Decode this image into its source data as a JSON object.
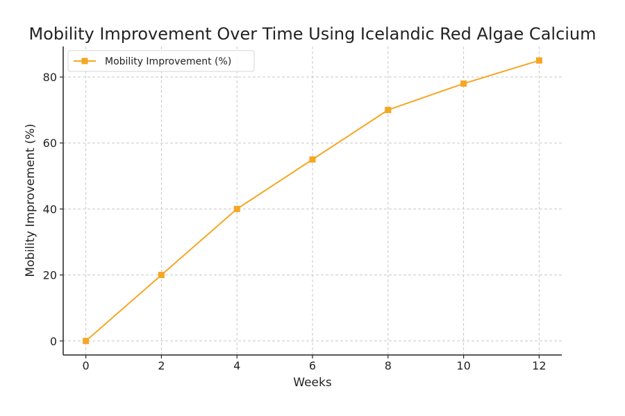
{
  "chart_data": {
    "type": "line",
    "title": "Mobility Improvement Over Time Using Icelandic Red Algae Calcium",
    "xlabel": "Weeks",
    "ylabel": "Mobility Improvement (%)",
    "x": [
      0,
      2,
      4,
      6,
      8,
      10,
      12
    ],
    "series": [
      {
        "name": "Mobility Improvement (%)",
        "values": [
          0,
          20,
          40,
          55,
          70,
          78,
          85
        ],
        "color": "#F5A623",
        "marker": "square"
      }
    ],
    "xticks": [
      0,
      2,
      4,
      6,
      8,
      10,
      12
    ],
    "yticks": [
      0,
      20,
      40,
      60,
      80
    ],
    "xlim": [
      -0.6,
      12.6
    ],
    "ylim": [
      -4.25,
      89.25
    ],
    "grid": true,
    "legend": "top-left"
  }
}
